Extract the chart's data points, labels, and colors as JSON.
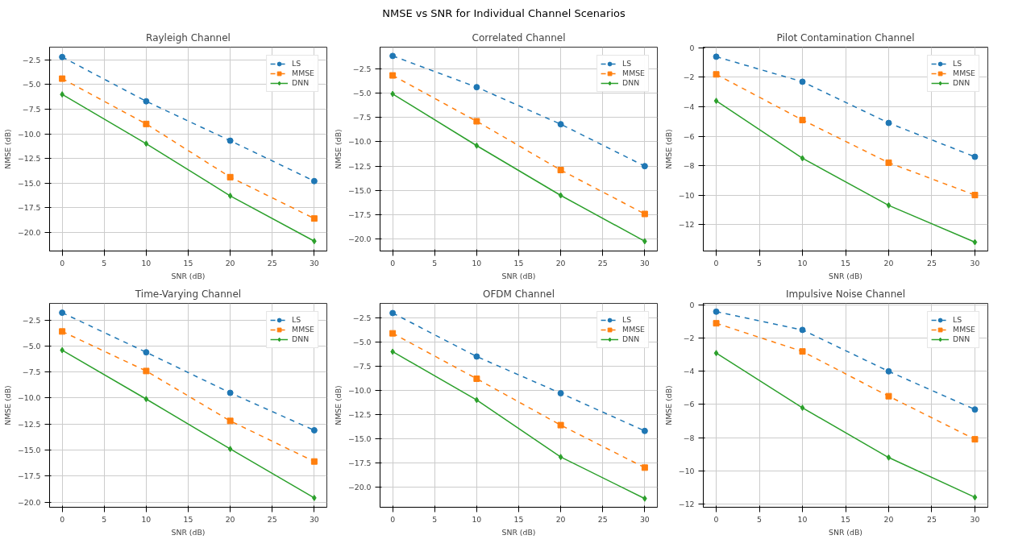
{
  "chart_data": [
    {
      "type": "line",
      "title": "Rayleigh Channel",
      "annotations": [
        "NMSE vs SNR for Individual Channel Scenarios"
      ],
      "xlabel": "SNR (dB)",
      "ylabel": "NMSE (dB)",
      "x": [
        0,
        10,
        20,
        30
      ],
      "xlim": [
        -1.5,
        31.5
      ],
      "xticks": [
        0,
        5,
        10,
        15,
        20,
        25,
        30
      ],
      "ylim": [
        -21.9,
        -1.2
      ],
      "yticks": [
        {
          "value": -20,
          "label": "−20.0"
        },
        -17.5,
        {
          "value": -15,
          "label": "−15.0"
        },
        -12.5,
        {
          "value": -10,
          "label": "−10.0"
        },
        -7.5,
        {
          "value": -5,
          "label": "−5.0"
        },
        -2.5
      ],
      "grid": true,
      "legend": "top right",
      "series": [
        {
          "name": "LS",
          "color": "#1f77b4",
          "marker": "circle",
          "line_style": "dashed",
          "values": [
            -2.2,
            -6.7,
            -10.7,
            -14.8
          ]
        },
        {
          "name": "MMSE",
          "color": "#ff7f0e",
          "marker": "square",
          "line_style": "dashed",
          "values": [
            -4.4,
            -9.0,
            -14.4,
            -18.6
          ]
        },
        {
          "name": "DNN",
          "color": "#2ca02c",
          "marker": "diamond",
          "line_style": "solid",
          "values": [
            -6.0,
            -11.0,
            -16.3,
            -20.9
          ]
        }
      ]
    },
    {
      "type": "line",
      "title": "Correlated Channel",
      "xlabel": "SNR (dB)",
      "ylabel": "NMSE (dB)",
      "x": [
        0,
        10,
        20,
        30
      ],
      "xlim": [
        -1.5,
        31.5
      ],
      "xticks": [
        0,
        5,
        10,
        15,
        20,
        25,
        30
      ],
      "ylim": [
        -21.2,
        -0.3
      ],
      "yticks": [
        {
          "value": -20,
          "label": "−20.0"
        },
        -17.5,
        {
          "value": -15,
          "label": "−15.0"
        },
        -12.5,
        {
          "value": -10,
          "label": "−10.0"
        },
        -7.5,
        {
          "value": -5,
          "label": "−5.0"
        },
        -2.5
      ],
      "grid": true,
      "legend": "top right",
      "series": [
        {
          "name": "LS",
          "color": "#1f77b4",
          "marker": "circle",
          "line_style": "dashed",
          "values": [
            -1.2,
            -4.4,
            -8.2,
            -12.5
          ]
        },
        {
          "name": "MMSE",
          "color": "#ff7f0e",
          "marker": "square",
          "line_style": "dashed",
          "values": [
            -3.2,
            -7.9,
            -12.9,
            -17.4
          ]
        },
        {
          "name": "DNN",
          "color": "#2ca02c",
          "marker": "diamond",
          "line_style": "solid",
          "values": [
            -5.1,
            -10.4,
            -15.5,
            -20.2
          ]
        }
      ]
    },
    {
      "type": "line",
      "title": "Pilot Contamination Channel",
      "xlabel": "SNR (dB)",
      "ylabel": "NMSE (dB)",
      "x": [
        0,
        10,
        20,
        30
      ],
      "xlim": [
        -1.5,
        31.5
      ],
      "xticks": [
        0,
        5,
        10,
        15,
        20,
        25,
        30
      ],
      "ylim": [
        -13.8,
        0.05
      ],
      "yticks": [
        -12,
        -10,
        -8,
        -6,
        -4,
        -2,
        0
      ],
      "grid": true,
      "legend": "top right",
      "series": [
        {
          "name": "LS",
          "color": "#1f77b4",
          "marker": "circle",
          "line_style": "dashed",
          "values": [
            -0.6,
            -2.3,
            -5.1,
            -7.4
          ]
        },
        {
          "name": "MMSE",
          "color": "#ff7f0e",
          "marker": "square",
          "line_style": "dashed",
          "values": [
            -1.8,
            -4.9,
            -7.8,
            -10.0
          ]
        },
        {
          "name": "DNN",
          "color": "#2ca02c",
          "marker": "diamond",
          "line_style": "solid",
          "values": [
            -3.6,
            -7.5,
            -10.7,
            -13.2
          ]
        }
      ]
    },
    {
      "type": "line",
      "title": "Time-Varying Channel",
      "xlabel": "SNR (dB)",
      "ylabel": "NMSE (dB)",
      "x": [
        0,
        10,
        20,
        30
      ],
      "xlim": [
        -1.5,
        31.5
      ],
      "xticks": [
        0,
        5,
        10,
        15,
        20,
        25,
        30
      ],
      "ylim": [
        -20.5,
        -0.9
      ],
      "yticks": [
        {
          "value": -20,
          "label": "−20.0"
        },
        -17.5,
        {
          "value": -15,
          "label": "−15.0"
        },
        -12.5,
        {
          "value": -10,
          "label": "−10.0"
        },
        -7.5,
        {
          "value": -5,
          "label": "−5.0"
        },
        -2.5
      ],
      "grid": true,
      "legend": "top right",
      "series": [
        {
          "name": "LS",
          "color": "#1f77b4",
          "marker": "circle",
          "line_style": "dashed",
          "values": [
            -1.8,
            -5.6,
            -9.5,
            -13.1
          ]
        },
        {
          "name": "MMSE",
          "color": "#ff7f0e",
          "marker": "square",
          "line_style": "dashed",
          "values": [
            -3.6,
            -7.4,
            -12.2,
            -16.1
          ]
        },
        {
          "name": "DNN",
          "color": "#2ca02c",
          "marker": "diamond",
          "line_style": "solid",
          "values": [
            -5.4,
            -10.1,
            -14.9,
            -19.6
          ]
        }
      ]
    },
    {
      "type": "line",
      "title": "OFDM Channel",
      "xlabel": "SNR (dB)",
      "ylabel": "NMSE (dB)",
      "x": [
        0,
        10,
        20,
        30
      ],
      "xlim": [
        -1.5,
        31.5
      ],
      "xticks": [
        0,
        5,
        10,
        15,
        20,
        25,
        30
      ],
      "ylim": [
        -22.1,
        -1.0
      ],
      "yticks": [
        {
          "value": -20,
          "label": "−20.0"
        },
        -17.5,
        {
          "value": -15,
          "label": "−15.0"
        },
        -12.5,
        {
          "value": -10,
          "label": "−10.0"
        },
        -7.5,
        {
          "value": -5,
          "label": "−5.0"
        },
        -2.5
      ],
      "grid": true,
      "legend": "top right",
      "series": [
        {
          "name": "LS",
          "color": "#1f77b4",
          "marker": "circle",
          "line_style": "dashed",
          "values": [
            -2.0,
            -6.5,
            -10.3,
            -14.2
          ]
        },
        {
          "name": "MMSE",
          "color": "#ff7f0e",
          "marker": "square",
          "line_style": "dashed",
          "values": [
            -4.1,
            -8.8,
            -13.6,
            -18.0
          ]
        },
        {
          "name": "DNN",
          "color": "#2ca02c",
          "marker": "diamond",
          "line_style": "solid",
          "values": [
            -6.0,
            -11.0,
            -16.9,
            -21.2
          ]
        }
      ]
    },
    {
      "type": "line",
      "title": "Impulsive Noise Channel",
      "xlabel": "SNR (dB)",
      "ylabel": "NMSE (dB)",
      "x": [
        0,
        10,
        20,
        30
      ],
      "xlim": [
        -1.5,
        31.5
      ],
      "xticks": [
        0,
        5,
        10,
        15,
        20,
        25,
        30
      ],
      "ylim": [
        -12.2,
        0.1
      ],
      "yticks": [
        -12,
        -10,
        -8,
        -6,
        -4,
        -2,
        0
      ],
      "grid": true,
      "legend": "top right",
      "series": [
        {
          "name": "LS",
          "color": "#1f77b4",
          "marker": "circle",
          "line_style": "dashed",
          "values": [
            -0.4,
            -1.5,
            -4.0,
            -6.3
          ]
        },
        {
          "name": "MMSE",
          "color": "#ff7f0e",
          "marker": "square",
          "line_style": "dashed",
          "values": [
            -1.1,
            -2.8,
            -5.5,
            -8.1
          ]
        },
        {
          "name": "DNN",
          "color": "#2ca02c",
          "marker": "diamond",
          "line_style": "solid",
          "values": [
            -2.9,
            -6.2,
            -9.2,
            -11.6
          ]
        }
      ]
    }
  ]
}
